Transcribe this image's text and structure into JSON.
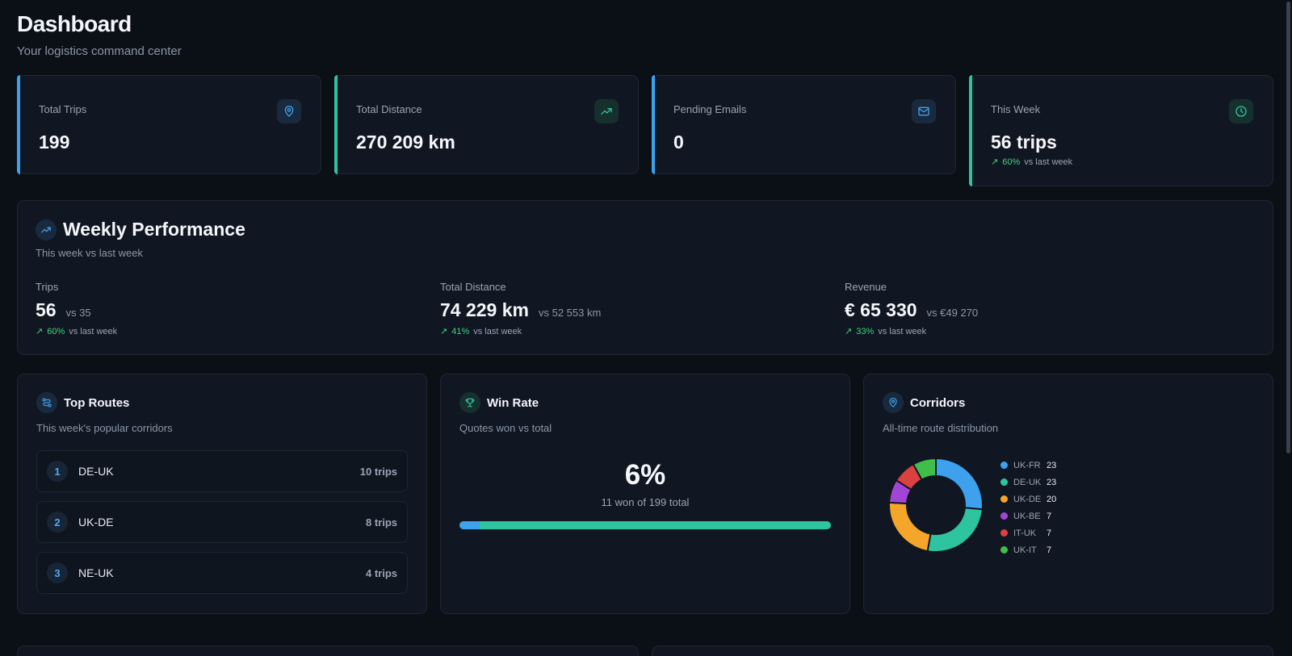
{
  "header": {
    "title": "Dashboard",
    "subtitle": "Your logistics command center"
  },
  "stats": [
    {
      "label": "Total Trips",
      "value": "199",
      "icon": "map-pin-icon",
      "accent": "#3da1ee"
    },
    {
      "label": "Total Distance",
      "value": "270 209 km",
      "icon": "trending-up-icon",
      "accent": "#2ec4a0"
    },
    {
      "label": "Pending Emails",
      "value": "0",
      "icon": "mail-icon",
      "accent": "#3da1ee"
    },
    {
      "label": "This Week",
      "value": "56 trips",
      "icon": "clock-icon",
      "accent": "#2ec4a0",
      "trend_pct": "60%",
      "trend_text": "vs last week"
    }
  ],
  "weekly": {
    "title": "Weekly Performance",
    "desc": "This week vs last week",
    "metrics": [
      {
        "label": "Trips",
        "value": "56",
        "vs": "vs 35",
        "pct": "60%",
        "trend_text": "vs last week"
      },
      {
        "label": "Total Distance",
        "value": "74 229 km",
        "vs": "vs 52 553 km",
        "pct": "41%",
        "trend_text": "vs last week"
      },
      {
        "label": "Revenue",
        "value": "€ 65 330",
        "vs": "vs €49 270",
        "pct": "33%",
        "trend_text": "vs last week"
      }
    ]
  },
  "top_routes": {
    "title": "Top Routes",
    "desc": "This week's popular corridors",
    "items": [
      {
        "rank": "1",
        "name": "DE-UK",
        "trips": "10 trips"
      },
      {
        "rank": "2",
        "name": "UK-DE",
        "trips": "8 trips"
      },
      {
        "rank": "3",
        "name": "NE-UK",
        "trips": "4 trips"
      }
    ]
  },
  "win_rate": {
    "title": "Win Rate",
    "desc": "Quotes won vs total",
    "value": "6%",
    "sub": "11 won of 199 total",
    "won": 11,
    "total": 199
  },
  "corridors": {
    "title": "Corridors",
    "desc": "All-time route distribution",
    "items": [
      {
        "name": "UK-FR",
        "value": "23",
        "color": "#3da1ee"
      },
      {
        "name": "DE-UK",
        "value": "23",
        "color": "#2ec4a0"
      },
      {
        "name": "UK-DE",
        "value": "20",
        "color": "#f4a62a"
      },
      {
        "name": "UK-BE",
        "value": "7",
        "color": "#a245d6"
      },
      {
        "name": "IT-UK",
        "value": "7",
        "color": "#dc4141"
      },
      {
        "name": "UK-IT",
        "value": "7",
        "color": "#3fbf4a"
      }
    ]
  },
  "chart_data": {
    "type": "pie",
    "categories": [
      "UK-FR",
      "DE-UK",
      "UK-DE",
      "UK-BE",
      "IT-UK",
      "UK-IT"
    ],
    "values": [
      23,
      23,
      20,
      7,
      7,
      7
    ],
    "title": "Corridors"
  },
  "colors": {
    "background": "#0b0f16",
    "card": "#111722",
    "blue": "#3da1ee",
    "green": "#2ec4a0",
    "positive": "#3fd37a"
  }
}
